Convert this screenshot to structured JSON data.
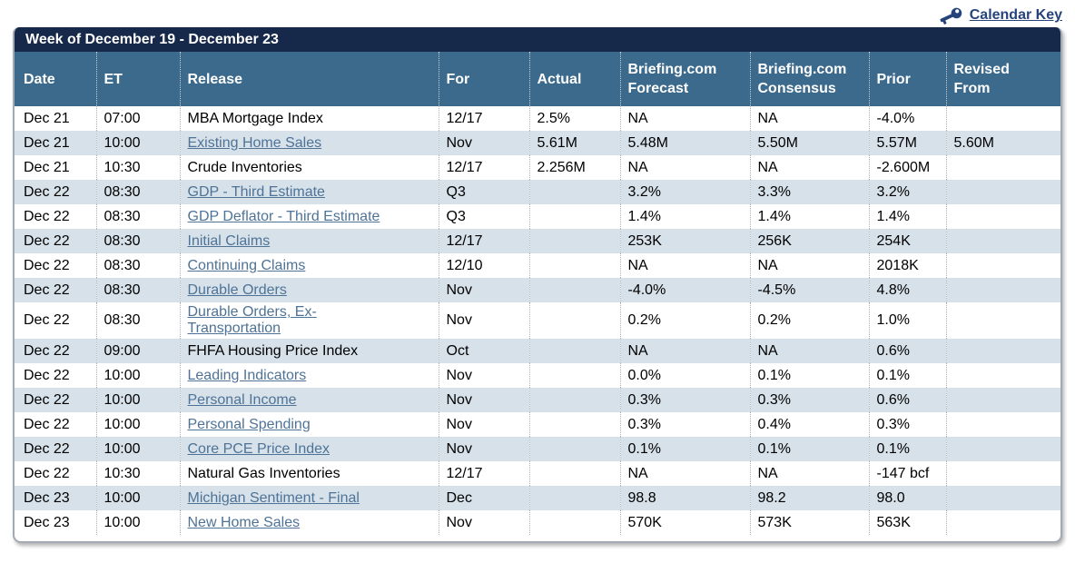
{
  "topbar": {
    "calendar_key_label": "Calendar Key"
  },
  "calendar": {
    "title": "Week of December 19 - December 23",
    "columns": [
      "Date",
      "ET",
      "Release",
      "For",
      "Actual",
      "Briefing.com\nForecast",
      "Briefing.com\nConsensus",
      "Prior",
      "Revised\nFrom"
    ],
    "rows": [
      {
        "date": "Dec 21",
        "et": "07:00",
        "release": "MBA Mortgage Index",
        "is_link": false,
        "for": "12/17",
        "actual": "2.5%",
        "forecast": "NA",
        "consensus": "NA",
        "prior": "-4.0%",
        "revised_from": ""
      },
      {
        "date": "Dec 21",
        "et": "10:00",
        "release": "Existing Home Sales",
        "is_link": true,
        "for": "Nov",
        "actual": "5.61M",
        "forecast": "5.48M",
        "consensus": "5.50M",
        "prior": "5.57M",
        "revised_from": "5.60M"
      },
      {
        "date": "Dec 21",
        "et": "10:30",
        "release": "Crude Inventories",
        "is_link": false,
        "for": "12/17",
        "actual": "2.256M",
        "forecast": "NA",
        "consensus": "NA",
        "prior": "-2.600M",
        "revised_from": ""
      },
      {
        "date": "Dec 22",
        "et": "08:30",
        "release": "GDP - Third Estimate",
        "is_link": true,
        "for": "Q3",
        "actual": "",
        "forecast": "3.2%",
        "consensus": "3.3%",
        "prior": "3.2%",
        "revised_from": ""
      },
      {
        "date": "Dec 22",
        "et": "08:30",
        "release": "GDP Deflator - Third Estimate",
        "is_link": true,
        "for": "Q3",
        "actual": "",
        "forecast": "1.4%",
        "consensus": "1.4%",
        "prior": "1.4%",
        "revised_from": ""
      },
      {
        "date": "Dec 22",
        "et": "08:30",
        "release": "Initial Claims",
        "is_link": true,
        "for": "12/17",
        "actual": "",
        "forecast": "253K",
        "consensus": "256K",
        "prior": "254K",
        "revised_from": ""
      },
      {
        "date": "Dec 22",
        "et": "08:30",
        "release": "Continuing Claims",
        "is_link": true,
        "for": "12/10",
        "actual": "",
        "forecast": "NA",
        "consensus": "NA",
        "prior": "2018K",
        "revised_from": ""
      },
      {
        "date": "Dec 22",
        "et": "08:30",
        "release": "Durable Orders",
        "is_link": true,
        "for": "Nov",
        "actual": "",
        "forecast": "-4.0%",
        "consensus": "-4.5%",
        "prior": "4.8%",
        "revised_from": ""
      },
      {
        "date": "Dec 22",
        "et": "08:30",
        "release": "Durable Orders, Ex-\nTransportation",
        "is_link": true,
        "for": "Nov",
        "actual": "",
        "forecast": "0.2%",
        "consensus": "0.2%",
        "prior": "1.0%",
        "revised_from": ""
      },
      {
        "date": "Dec 22",
        "et": "09:00",
        "release": "FHFA Housing Price Index",
        "is_link": false,
        "for": "Oct",
        "actual": "",
        "forecast": "NA",
        "consensus": "NA",
        "prior": "0.6%",
        "revised_from": ""
      },
      {
        "date": "Dec 22",
        "et": "10:00",
        "release": "Leading Indicators",
        "is_link": true,
        "for": "Nov",
        "actual": "",
        "forecast": "0.0%",
        "consensus": "0.1%",
        "prior": "0.1%",
        "revised_from": ""
      },
      {
        "date": "Dec 22",
        "et": "10:00",
        "release": "Personal Income",
        "is_link": true,
        "for": "Nov",
        "actual": "",
        "forecast": "0.3%",
        "consensus": "0.3%",
        "prior": "0.6%",
        "revised_from": ""
      },
      {
        "date": "Dec 22",
        "et": "10:00",
        "release": "Personal Spending",
        "is_link": true,
        "for": "Nov",
        "actual": "",
        "forecast": "0.3%",
        "consensus": "0.4%",
        "prior": "0.3%",
        "revised_from": ""
      },
      {
        "date": "Dec 22",
        "et": "10:00",
        "release": "Core PCE Price Index",
        "is_link": true,
        "for": "Nov",
        "actual": "",
        "forecast": "0.1%",
        "consensus": "0.1%",
        "prior": "0.1%",
        "revised_from": ""
      },
      {
        "date": "Dec 22",
        "et": "10:30",
        "release": "Natural Gas Inventories",
        "is_link": false,
        "for": "12/17",
        "actual": "",
        "forecast": "NA",
        "consensus": "NA",
        "prior": "-147 bcf",
        "revised_from": ""
      },
      {
        "date": "Dec 23",
        "et": "10:00",
        "release": "Michigan Sentiment - Final",
        "is_link": true,
        "for": "Dec",
        "actual": "",
        "forecast": "98.8",
        "consensus": "98.2",
        "prior": "98.0",
        "revised_from": ""
      },
      {
        "date": "Dec 23",
        "et": "10:00",
        "release": "New Home Sales",
        "is_link": true,
        "for": "Nov",
        "actual": "",
        "forecast": "570K",
        "consensus": "573K",
        "prior": "563K",
        "revised_from": ""
      }
    ]
  },
  "colors": {
    "title_bar_bg": "#17294a",
    "header_bg": "#3c6a8d",
    "row_alt_bg": "#d7e1ea",
    "release_link": "#4e7396",
    "calendar_key_link": "#26437c",
    "outer_border": "#a3aab1"
  }
}
